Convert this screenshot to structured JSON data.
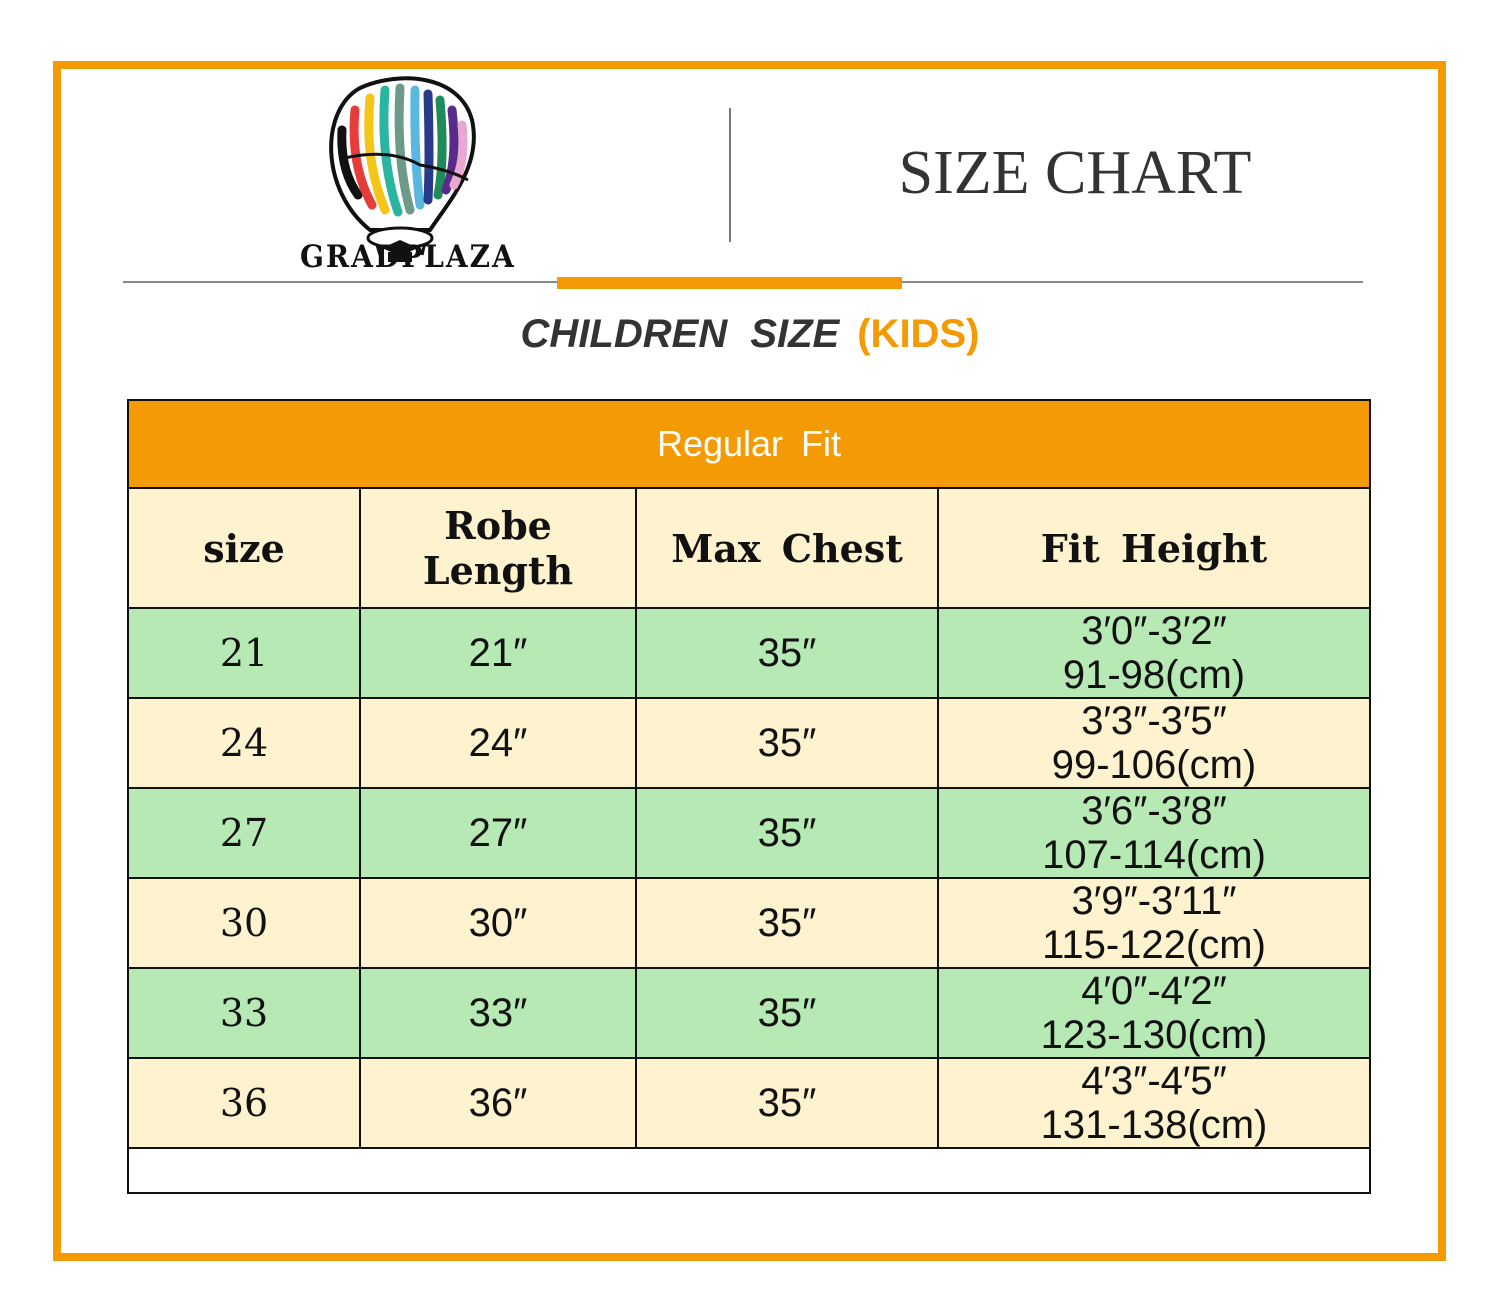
{
  "brand": {
    "name": "GRADPLAZA",
    "logo": "hot-air-balloon-rainbow-graduation-cap"
  },
  "header": {
    "title": "SIZE CHART"
  },
  "subtitle": {
    "main": "CHILDREN  SIZE",
    "highlight": "(KIDS)"
  },
  "colors": {
    "accent": "#f39a05",
    "row_green": "#b6e9b4",
    "row_cream": "#fff2cf"
  },
  "table": {
    "caption": "Regular  Fit",
    "columns": [
      "size",
      "Robe  Length",
      "Max  Chest",
      "Fit  Height"
    ],
    "rows": [
      {
        "size": "21",
        "robe_length": "21″",
        "max_chest": "35″",
        "height_ft": "3′0″-3′2″",
        "height_cm": "91-98(cm)"
      },
      {
        "size": "24",
        "robe_length": "24″",
        "max_chest": "35″",
        "height_ft": "3′3″-3′5″",
        "height_cm": "99-106(cm)"
      },
      {
        "size": "27",
        "robe_length": "27″",
        "max_chest": "35″",
        "height_ft": "3′6″-3′8″",
        "height_cm": "107-114(cm)"
      },
      {
        "size": "30",
        "robe_length": "30″",
        "max_chest": "35″",
        "height_ft": "3′9″-3′11″",
        "height_cm": "115-122(cm)"
      },
      {
        "size": "33",
        "robe_length": "33″",
        "max_chest": "35″",
        "height_ft": "4′0″-4′2″",
        "height_cm": "123-130(cm)"
      },
      {
        "size": "36",
        "robe_length": "36″",
        "max_chest": "35″",
        "height_ft": "4′3″-4′5″",
        "height_cm": "131-138(cm)"
      }
    ]
  }
}
